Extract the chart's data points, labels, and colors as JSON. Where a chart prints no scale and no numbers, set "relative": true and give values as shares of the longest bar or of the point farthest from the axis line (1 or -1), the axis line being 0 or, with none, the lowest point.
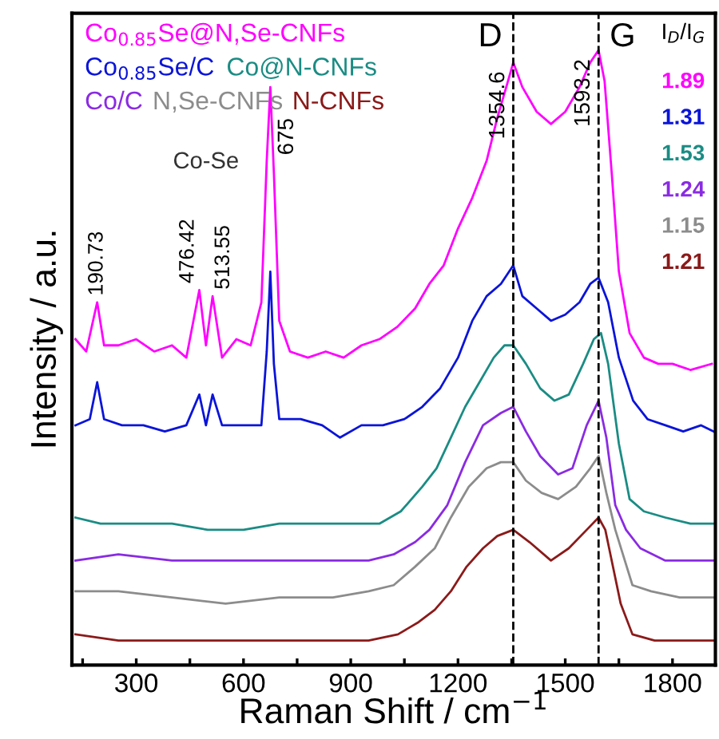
{
  "chart_data": {
    "type": "line",
    "relative": true,
    "xlabel": "Raman Shift / cm$^{−1}$",
    "ylabel": "Intensity / a.u.",
    "xlim": [
      120,
      1920
    ],
    "xticks": [
      {
        "value": 150,
        "label": null
      },
      300,
      {
        "value": 450,
        "label": null
      },
      600,
      {
        "value": 750,
        "label": null
      },
      900,
      {
        "value": 1050,
        "label": null
      },
      1200,
      {
        "value": 1350,
        "label": null
      },
      1500,
      {
        "value": 1650,
        "label": null
      },
      1800
    ],
    "legend": "top left",
    "grid": false,
    "marker": "none",
    "line_style": "solid",
    "series": [
      {
        "name": "Co$_{0.85}$Se@N,Se-CNFs",
        "color": "#ff00ff",
        "x": [
          130,
          160,
          190.73,
          210,
          250,
          300,
          350,
          400,
          440,
          476.42,
          495,
          513.55,
          540,
          580,
          620,
          650,
          665,
          675,
          685,
          700,
          730,
          780,
          830,
          880,
          930,
          980,
          1030,
          1080,
          1120,
          1160,
          1200,
          1240,
          1280,
          1310,
          1340,
          1354.6,
          1380,
          1420,
          1460,
          1500,
          1540,
          1570,
          1593.2,
          1610,
          1630,
          1650,
          1680,
          1720,
          1760,
          1800,
          1850,
          1910
        ],
        "values": [
          0.53,
          0.51,
          0.59,
          0.52,
          0.52,
          0.53,
          0.51,
          0.52,
          0.5,
          0.61,
          0.52,
          0.6,
          0.5,
          0.53,
          0.52,
          0.59,
          0.82,
          0.94,
          0.8,
          0.56,
          0.51,
          0.5,
          0.51,
          0.5,
          0.52,
          0.53,
          0.55,
          0.58,
          0.62,
          0.65,
          0.71,
          0.76,
          0.82,
          0.89,
          0.95,
          0.98,
          0.94,
          0.9,
          0.88,
          0.9,
          0.94,
          0.98,
          1.0,
          0.95,
          0.8,
          0.64,
          0.54,
          0.5,
          0.49,
          0.49,
          0.48,
          0.49
        ]
      },
      {
        "name": "Co$_{0.85}$Se/C",
        "color": "#0a14d8",
        "x": [
          130,
          170,
          190.73,
          210,
          260,
          320,
          380,
          440,
          476.42,
          495,
          513.55,
          540,
          600,
          650,
          665,
          675,
          685,
          700,
          760,
          820,
          870,
          930,
          990,
          1050,
          1100,
          1150,
          1200,
          1240,
          1280,
          1320,
          1354.6,
          1380,
          1420,
          1460,
          1500,
          1540,
          1570,
          1593.2,
          1620,
          1650,
          1690,
          1730,
          1780,
          1830,
          1880,
          1915
        ],
        "values": [
          0.39,
          0.4,
          0.46,
          0.4,
          0.39,
          0.39,
          0.38,
          0.39,
          0.44,
          0.39,
          0.44,
          0.39,
          0.39,
          0.39,
          0.51,
          0.64,
          0.49,
          0.4,
          0.4,
          0.39,
          0.37,
          0.39,
          0.39,
          0.4,
          0.42,
          0.45,
          0.5,
          0.56,
          0.6,
          0.62,
          0.65,
          0.6,
          0.58,
          0.56,
          0.57,
          0.59,
          0.62,
          0.63,
          0.59,
          0.5,
          0.43,
          0.4,
          0.39,
          0.38,
          0.39,
          0.38
        ]
      },
      {
        "name": "Co@N-CNFs",
        "color": "#1a8c84",
        "x": [
          130,
          200,
          300,
          400,
          500,
          600,
          700,
          800,
          900,
          980,
          1040,
          1100,
          1140,
          1180,
          1220,
          1260,
          1300,
          1330,
          1354.6,
          1390,
          1430,
          1470,
          1510,
          1550,
          1580,
          1600,
          1620,
          1650,
          1680,
          1720,
          1780,
          1850,
          1915
        ],
        "values": [
          0.24,
          0.23,
          0.23,
          0.23,
          0.22,
          0.22,
          0.23,
          0.23,
          0.23,
          0.23,
          0.25,
          0.29,
          0.32,
          0.37,
          0.42,
          0.46,
          0.5,
          0.52,
          0.52,
          0.49,
          0.45,
          0.43,
          0.44,
          0.49,
          0.53,
          0.54,
          0.49,
          0.36,
          0.27,
          0.25,
          0.24,
          0.23,
          0.23
        ]
      },
      {
        "name": "Co/C",
        "color": "#8a2be2",
        "x": [
          130,
          250,
          400,
          550,
          700,
          850,
          950,
          1020,
          1080,
          1120,
          1170,
          1220,
          1270,
          1320,
          1354.6,
          1390,
          1430,
          1480,
          1520,
          1560,
          1593.2,
          1615,
          1640,
          1670,
          1710,
          1780,
          1850,
          1915
        ],
        "values": [
          0.17,
          0.18,
          0.17,
          0.17,
          0.17,
          0.17,
          0.17,
          0.18,
          0.2,
          0.22,
          0.26,
          0.33,
          0.39,
          0.41,
          0.42,
          0.38,
          0.34,
          0.31,
          0.32,
          0.39,
          0.43,
          0.37,
          0.26,
          0.22,
          0.19,
          0.17,
          0.17,
          0.17
        ]
      },
      {
        "name": "N,Se-CNFs",
        "color": "#8c8c8c",
        "x": [
          130,
          250,
          400,
          550,
          700,
          850,
          950,
          1020,
          1080,
          1135,
          1180,
          1230,
          1280,
          1320,
          1354.6,
          1390,
          1434,
          1480,
          1530,
          1570,
          1593.2,
          1615,
          1640,
          1688,
          1740,
          1820,
          1915
        ],
        "values": [
          0.12,
          0.12,
          0.11,
          0.1,
          0.11,
          0.11,
          0.12,
          0.13,
          0.16,
          0.19,
          0.24,
          0.29,
          0.32,
          0.33,
          0.33,
          0.3,
          0.28,
          0.27,
          0.29,
          0.32,
          0.34,
          0.28,
          0.22,
          0.13,
          0.12,
          0.11,
          0.11
        ]
      },
      {
        "name": "N-CNFs",
        "color": "#8b1a1a",
        "x": [
          130,
          250,
          400,
          550,
          700,
          850,
          950,
          1032,
          1090,
          1135,
          1180,
          1224,
          1270,
          1310,
          1354.6,
          1400,
          1460,
          1510,
          1560,
          1593.2,
          1612,
          1655,
          1688,
          1750,
          1850,
          1915
        ],
        "values": [
          0.05,
          0.04,
          0.04,
          0.04,
          0.04,
          0.04,
          0.04,
          0.05,
          0.07,
          0.09,
          0.12,
          0.16,
          0.19,
          0.21,
          0.22,
          0.2,
          0.17,
          0.19,
          0.22,
          0.24,
          0.22,
          0.1,
          0.05,
          0.04,
          0.04,
          0.04
        ]
      }
    ],
    "ref_lines": [
      {
        "axis": "x",
        "value": 1354.6,
        "label": "D",
        "color": "#000000",
        "line_style": "dashed"
      },
      {
        "axis": "x",
        "value": 1593.2,
        "label": "G",
        "color": "#000000",
        "line_style": "dashed"
      }
    ],
    "annotations": [
      "I$_{D}$/I$_{G}$",
      "1.89",
      "1.31",
      "1.53",
      "1.24",
      "1.15",
      "1.21",
      "Co-Se",
      {
        "text": "190.73",
        "x": 190.73,
        "y": 0.59
      },
      {
        "text": "476.42",
        "x": 476.42,
        "y": 0.61
      },
      {
        "text": "513.55",
        "x": 513.55,
        "y": 0.6
      },
      {
        "text": "675",
        "x": 675,
        "y": 0.94
      },
      {
        "text": "1354.6",
        "x": 1354.6,
        "y": 0.98
      },
      {
        "text": "1593.2",
        "x": 1593.2,
        "y": 1.0
      }
    ]
  }
}
